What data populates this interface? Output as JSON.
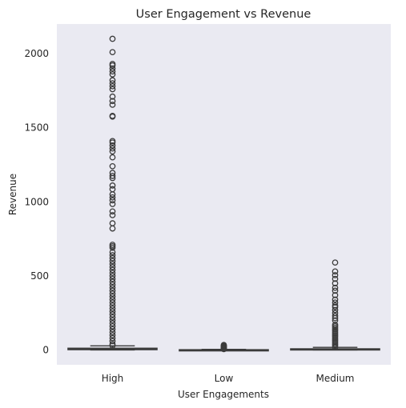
{
  "chart_data": {
    "type": "box",
    "title": "User Engagement vs Revenue",
    "xlabel": "User Engagements",
    "ylabel": "Revenue",
    "categories": [
      "High",
      "Low",
      "Medium"
    ],
    "ylim": [
      -100,
      2200
    ],
    "yticks": [
      0,
      500,
      1000,
      1500,
      2000
    ],
    "grid": false,
    "background": "#eaeaf2",
    "box_color": "#3b3b3b",
    "boxes": [
      {
        "category": "High",
        "q1": 2,
        "median": 6,
        "q3": 12,
        "whisker_low": 0,
        "whisker_high": 28,
        "outliers": [
          30,
          40,
          60,
          80,
          100,
          120,
          140,
          160,
          180,
          200,
          220,
          240,
          260,
          280,
          300,
          320,
          340,
          360,
          380,
          400,
          420,
          440,
          460,
          480,
          500,
          520,
          540,
          560,
          580,
          600,
          620,
          640,
          660,
          690,
          700,
          710,
          820,
          855,
          910,
          935,
          985,
          1010,
          1030,
          1050,
          1085,
          1110,
          1160,
          1175,
          1195,
          1240,
          1300,
          1340,
          1360,
          1380,
          1400,
          1410,
          1575,
          1580,
          1655,
          1680,
          1710,
          1760,
          1780,
          1800,
          1820,
          1860,
          1880,
          1900,
          1920,
          1930,
          2010,
          2100
        ]
      },
      {
        "category": "Low",
        "q1": 0,
        "median": 1,
        "q3": 2,
        "whisker_low": 0,
        "whisker_high": 4,
        "outliers": [
          6,
          10,
          14,
          18,
          22,
          26,
          30,
          34
        ]
      },
      {
        "category": "Medium",
        "q1": 1,
        "median": 4,
        "q3": 8,
        "whisker_low": 0,
        "whisker_high": 18,
        "outliers": [
          20,
          30,
          40,
          50,
          60,
          70,
          80,
          90,
          100,
          110,
          120,
          130,
          140,
          150,
          160,
          170,
          200,
          215,
          230,
          250,
          270,
          290,
          300,
          320,
          340,
          370,
          400,
          420,
          450,
          480,
          505,
          530,
          590
        ]
      }
    ]
  }
}
